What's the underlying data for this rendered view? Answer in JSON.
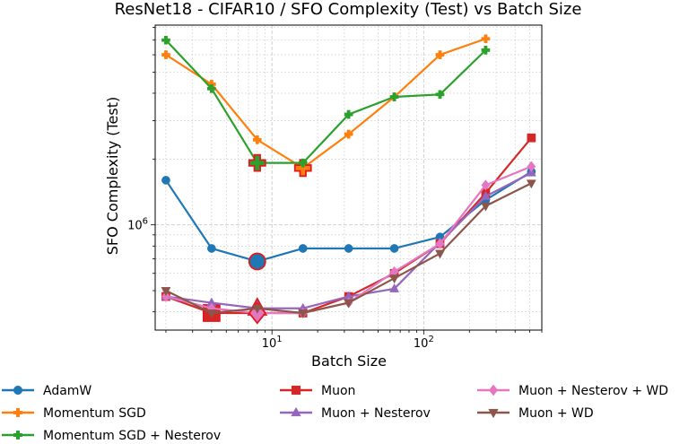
{
  "chart_data": {
    "type": "line",
    "title": "ResNet18 - CIFAR10 / SFO Complexity (Test) vs Batch Size",
    "xlabel": "Batch Size",
    "ylabel": "SFO Complexity (Test)",
    "xscale": "log",
    "yscale": "log",
    "xlim": [
      1.7,
      600
    ],
    "ylim": [
      330000,
      8200000
    ],
    "x_ticks": [
      {
        "value": 10,
        "label": "10^1"
      },
      {
        "value": 100,
        "label": "10^2"
      }
    ],
    "y_ticks": [
      {
        "value": 1000000,
        "label": "10^6"
      }
    ],
    "grid": true,
    "legend_position": "bottom",
    "series": [
      {
        "name": "AdamW",
        "color": "#1f77b4",
        "marker": "circle",
        "x": [
          2,
          4,
          8,
          16,
          32,
          64,
          128,
          256,
          512
        ],
        "y": [
          1600000,
          780000,
          680000,
          780000,
          780000,
          780000,
          880000,
          1300000,
          1750000
        ],
        "highlight_index": 2
      },
      {
        "name": "Momentum SGD",
        "color": "#ff7f0e",
        "marker": "plus",
        "x": [
          2,
          4,
          8,
          16,
          32,
          64,
          128,
          256
        ],
        "y": [
          6000000,
          4400000,
          2450000,
          1820000,
          2600000,
          3850000,
          6000000,
          7100000
        ],
        "highlight_index": 3
      },
      {
        "name": "Momentum SGD + Nesterov",
        "color": "#2ca02c",
        "marker": "plus",
        "x": [
          2,
          4,
          8,
          16,
          32,
          64,
          128,
          256
        ],
        "y": [
          7000000,
          4200000,
          1920000,
          1920000,
          3200000,
          3850000,
          3950000,
          6300000
        ],
        "highlight_index": 2
      },
      {
        "name": "Muon",
        "color": "#d62728",
        "marker": "square",
        "x": [
          2,
          4,
          8,
          16,
          32,
          64,
          128,
          256,
          512
        ],
        "y": [
          470000,
          395000,
          395000,
          395000,
          470000,
          600000,
          820000,
          1400000,
          2500000
        ],
        "highlight_index": 1
      },
      {
        "name": "Muon + Nesterov",
        "color": "#9467bd",
        "marker": "triangle-up",
        "x": [
          2,
          4,
          8,
          16,
          32,
          64,
          128,
          256,
          512
        ],
        "y": [
          470000,
          440000,
          415000,
          415000,
          470000,
          510000,
          830000,
          1350000,
          1730000
        ],
        "highlight_index": 2
      },
      {
        "name": "Muon + Nesterov + WD",
        "color": "#e377c2",
        "marker": "diamond",
        "x": [
          2,
          4,
          8,
          16,
          32,
          64,
          128,
          256,
          512
        ],
        "y": [
          470000,
          415000,
          395000,
          395000,
          440000,
          610000,
          820000,
          1520000,
          1850000
        ],
        "highlight_index": 2
      },
      {
        "name": "Muon + WD",
        "color": "#8c564b",
        "marker": "triangle-down",
        "x": [
          2,
          4,
          8,
          16,
          32,
          64,
          128,
          256,
          512
        ],
        "y": [
          500000,
          395000,
          415000,
          395000,
          440000,
          570000,
          740000,
          1220000,
          1550000
        ],
        "highlight_index": null
      }
    ]
  }
}
